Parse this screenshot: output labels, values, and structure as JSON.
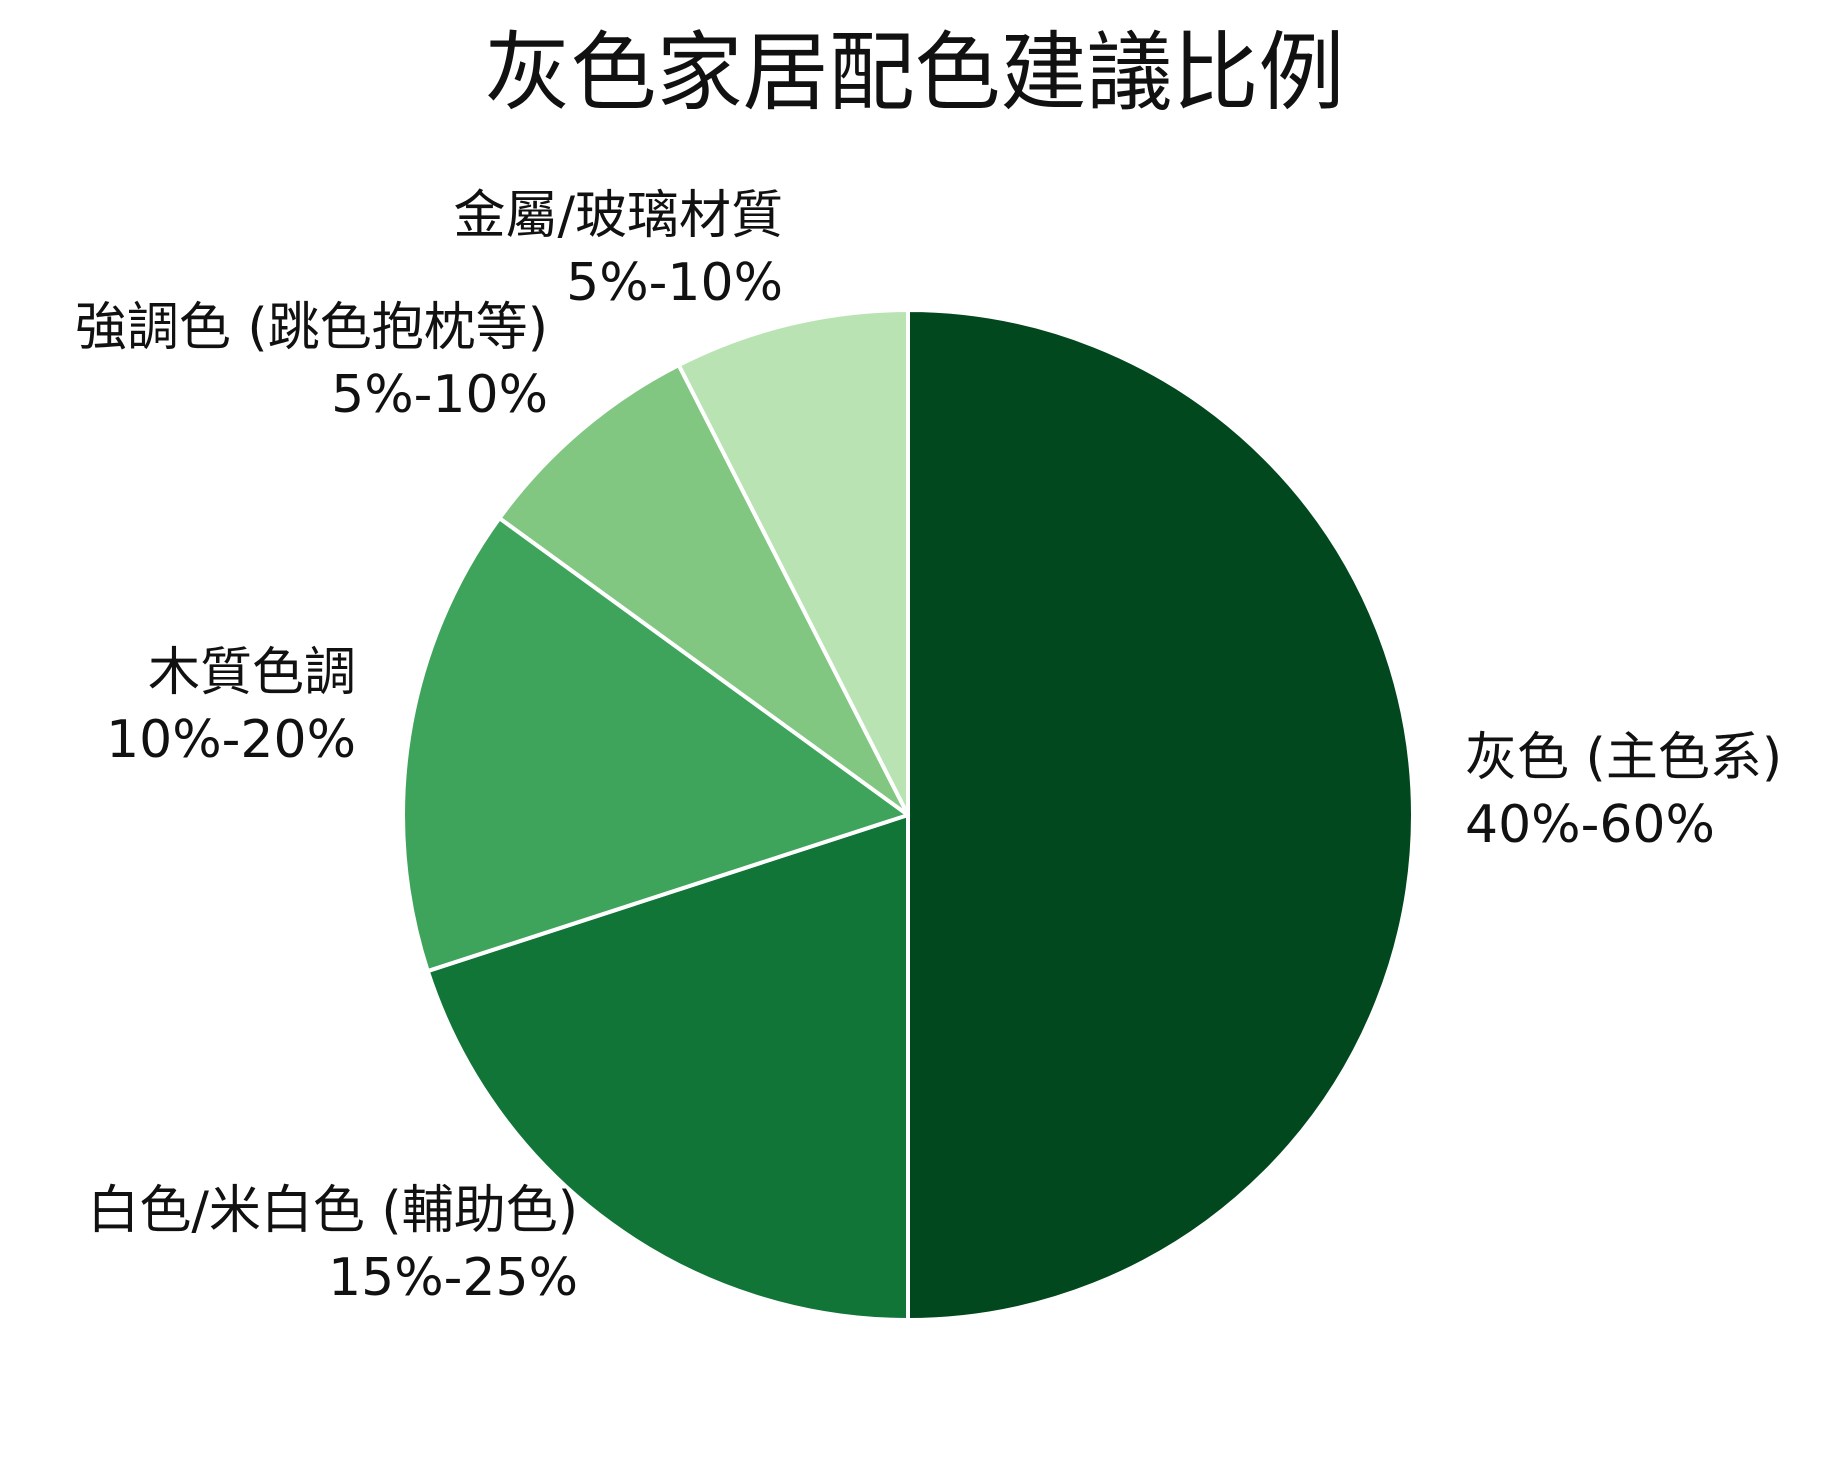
{
  "chart_data": {
    "type": "pie",
    "title": "灰色家居配色建議比例",
    "slices": [
      {
        "label": "灰色 (主色系)",
        "range": "40%-60%",
        "value": 50,
        "color": "#02481e"
      },
      {
        "label": "白色/米白色 (輔助色)",
        "range": "15%-25%",
        "value": 20,
        "color": "#107537"
      },
      {
        "label": "木質色調",
        "range": "10%-20%",
        "value": 15,
        "color": "#3fa45b"
      },
      {
        "label": "強調色 (跳色抱枕等)",
        "range": "5%-10%",
        "value": 7.5,
        "color": "#81c782"
      },
      {
        "label": "金屬/玻璃材質",
        "range": "5%-10%",
        "value": 7.5,
        "color": "#b9e3b3"
      }
    ],
    "start_angle": "12 o'clock",
    "direction": "clockwise",
    "legend": "none"
  }
}
